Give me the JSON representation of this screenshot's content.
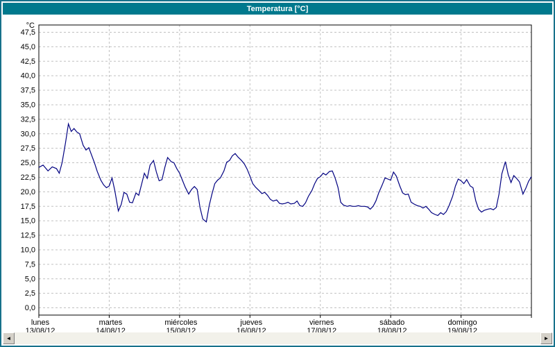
{
  "window": {
    "title": "Temperatura [°C]"
  },
  "colors": {
    "titlebar_bg": "#00798d",
    "frame_border": "#17718b",
    "line": "#000080",
    "grid": "#c0c0c0",
    "plot_border": "#000000"
  },
  "scrollbar": {
    "left_arrow": "◄",
    "right_arrow": "►"
  },
  "chart_data": {
    "type": "line",
    "title": "Temperatura [°C]",
    "xlabel": "",
    "ylabel": "°C",
    "ylim": [
      0,
      47.5
    ],
    "ytick_step": 2.5,
    "grid": "dashed",
    "legend": "none",
    "ytick_labels": [
      "47,5",
      "45,0",
      "42,5",
      "40,0",
      "37,5",
      "35,0",
      "32,5",
      "30,0",
      "27,5",
      "25,0",
      "22,5",
      "20,0",
      "17,5",
      "15,0",
      "12,5",
      "10,0",
      "7,5",
      "5,0",
      "2,5",
      "0,0"
    ],
    "x_days": [
      {
        "label": "lunes",
        "date": "13/08/12"
      },
      {
        "label": "martes",
        "date": "14/08/12"
      },
      {
        "label": "miércoles",
        "date": "15/08/12"
      },
      {
        "label": "jueves",
        "date": "16/08/12"
      },
      {
        "label": "viernes",
        "date": "17/08/12"
      },
      {
        "label": "sábado",
        "date": "18/08/12"
      },
      {
        "label": "domingo",
        "date": "19/08/12"
      }
    ],
    "x_range_days": [
      0,
      7
    ],
    "series": [
      {
        "name": "Temperatura",
        "color": "#000080",
        "x": [
          0.0,
          0.06,
          0.13,
          0.19,
          0.25,
          0.29,
          0.33,
          0.38,
          0.42,
          0.46,
          0.5,
          0.54,
          0.58,
          0.63,
          0.67,
          0.71,
          0.75,
          0.79,
          0.83,
          0.88,
          0.92,
          0.96,
          1.0,
          1.04,
          1.08,
          1.13,
          1.17,
          1.21,
          1.25,
          1.29,
          1.33,
          1.38,
          1.42,
          1.46,
          1.5,
          1.54,
          1.58,
          1.63,
          1.67,
          1.71,
          1.75,
          1.79,
          1.83,
          1.88,
          1.92,
          1.96,
          2.0,
          2.04,
          2.08,
          2.13,
          2.17,
          2.21,
          2.25,
          2.29,
          2.33,
          2.38,
          2.42,
          2.46,
          2.5,
          2.54,
          2.58,
          2.63,
          2.67,
          2.71,
          2.75,
          2.79,
          2.83,
          2.88,
          2.92,
          2.96,
          3.0,
          3.04,
          3.08,
          3.13,
          3.17,
          3.21,
          3.25,
          3.29,
          3.33,
          3.38,
          3.42,
          3.46,
          3.5,
          3.54,
          3.58,
          3.63,
          3.67,
          3.71,
          3.75,
          3.79,
          3.83,
          3.88,
          3.92,
          3.96,
          4.0,
          4.04,
          4.08,
          4.13,
          4.17,
          4.21,
          4.25,
          4.29,
          4.33,
          4.38,
          4.42,
          4.46,
          4.5,
          4.54,
          4.58,
          4.63,
          4.67,
          4.71,
          4.75,
          4.79,
          4.83,
          4.88,
          4.92,
          4.96,
          5.0,
          5.04,
          5.08,
          5.13,
          5.17,
          5.21,
          5.25,
          5.29,
          5.33,
          5.38,
          5.42,
          5.46,
          5.5,
          5.54,
          5.58,
          5.63,
          5.67,
          5.71,
          5.75,
          5.79,
          5.83,
          5.88,
          5.92,
          5.96,
          6.0,
          6.04,
          6.08,
          6.13,
          6.17,
          6.21,
          6.25,
          6.29,
          6.33,
          6.38,
          6.42,
          6.46,
          6.5,
          6.54,
          6.58,
          6.63,
          6.67,
          6.71,
          6.75,
          6.79,
          6.83,
          6.88,
          6.92,
          6.96,
          7.0
        ],
        "y": [
          24.2,
          24.6,
          23.6,
          24.3,
          24.0,
          23.2,
          25.0,
          28.5,
          31.7,
          30.4,
          30.9,
          30.3,
          30.0,
          28.0,
          27.2,
          27.6,
          26.3,
          25.0,
          23.5,
          22.0,
          21.2,
          20.7,
          21.0,
          22.4,
          20.2,
          16.7,
          17.8,
          19.9,
          19.6,
          18.2,
          18.1,
          19.8,
          19.4,
          21.3,
          23.2,
          22.3,
          24.6,
          25.4,
          23.4,
          21.9,
          22.1,
          24.2,
          25.9,
          25.2,
          25.0,
          24.0,
          23.2,
          22.0,
          20.8,
          19.6,
          20.4,
          20.9,
          20.4,
          17.3,
          15.3,
          14.8,
          17.6,
          19.6,
          21.4,
          22.0,
          22.4,
          23.6,
          25.1,
          25.4,
          26.2,
          26.6,
          26.0,
          25.4,
          24.8,
          23.9,
          22.7,
          21.4,
          20.8,
          20.2,
          19.7,
          19.9,
          19.4,
          18.7,
          18.4,
          18.6,
          18.0,
          17.9,
          18.0,
          18.2,
          17.9,
          18.0,
          18.4,
          17.6,
          17.5,
          18.1,
          19.2,
          20.2,
          21.4,
          22.3,
          22.6,
          23.2,
          22.9,
          23.5,
          23.6,
          22.4,
          20.8,
          18.2,
          17.7,
          17.5,
          17.6,
          17.5,
          17.5,
          17.6,
          17.5,
          17.5,
          17.4,
          17.0,
          17.5,
          18.4,
          19.8,
          21.2,
          22.4,
          22.2,
          22.0,
          23.4,
          22.7,
          21.0,
          19.8,
          19.5,
          19.6,
          18.2,
          17.9,
          17.6,
          17.5,
          17.2,
          17.5,
          17.0,
          16.4,
          16.1,
          15.9,
          16.4,
          16.1,
          16.6,
          17.6,
          19.2,
          21.0,
          22.2,
          21.9,
          21.4,
          22.1,
          21.0,
          20.7,
          18.4,
          17.0,
          16.5,
          16.8,
          17.0,
          17.1,
          16.9,
          17.3,
          19.6,
          23.1,
          25.2,
          23.0,
          21.6,
          22.8,
          22.3,
          21.7,
          19.6,
          20.6,
          21.8,
          22.6
        ]
      }
    ]
  }
}
